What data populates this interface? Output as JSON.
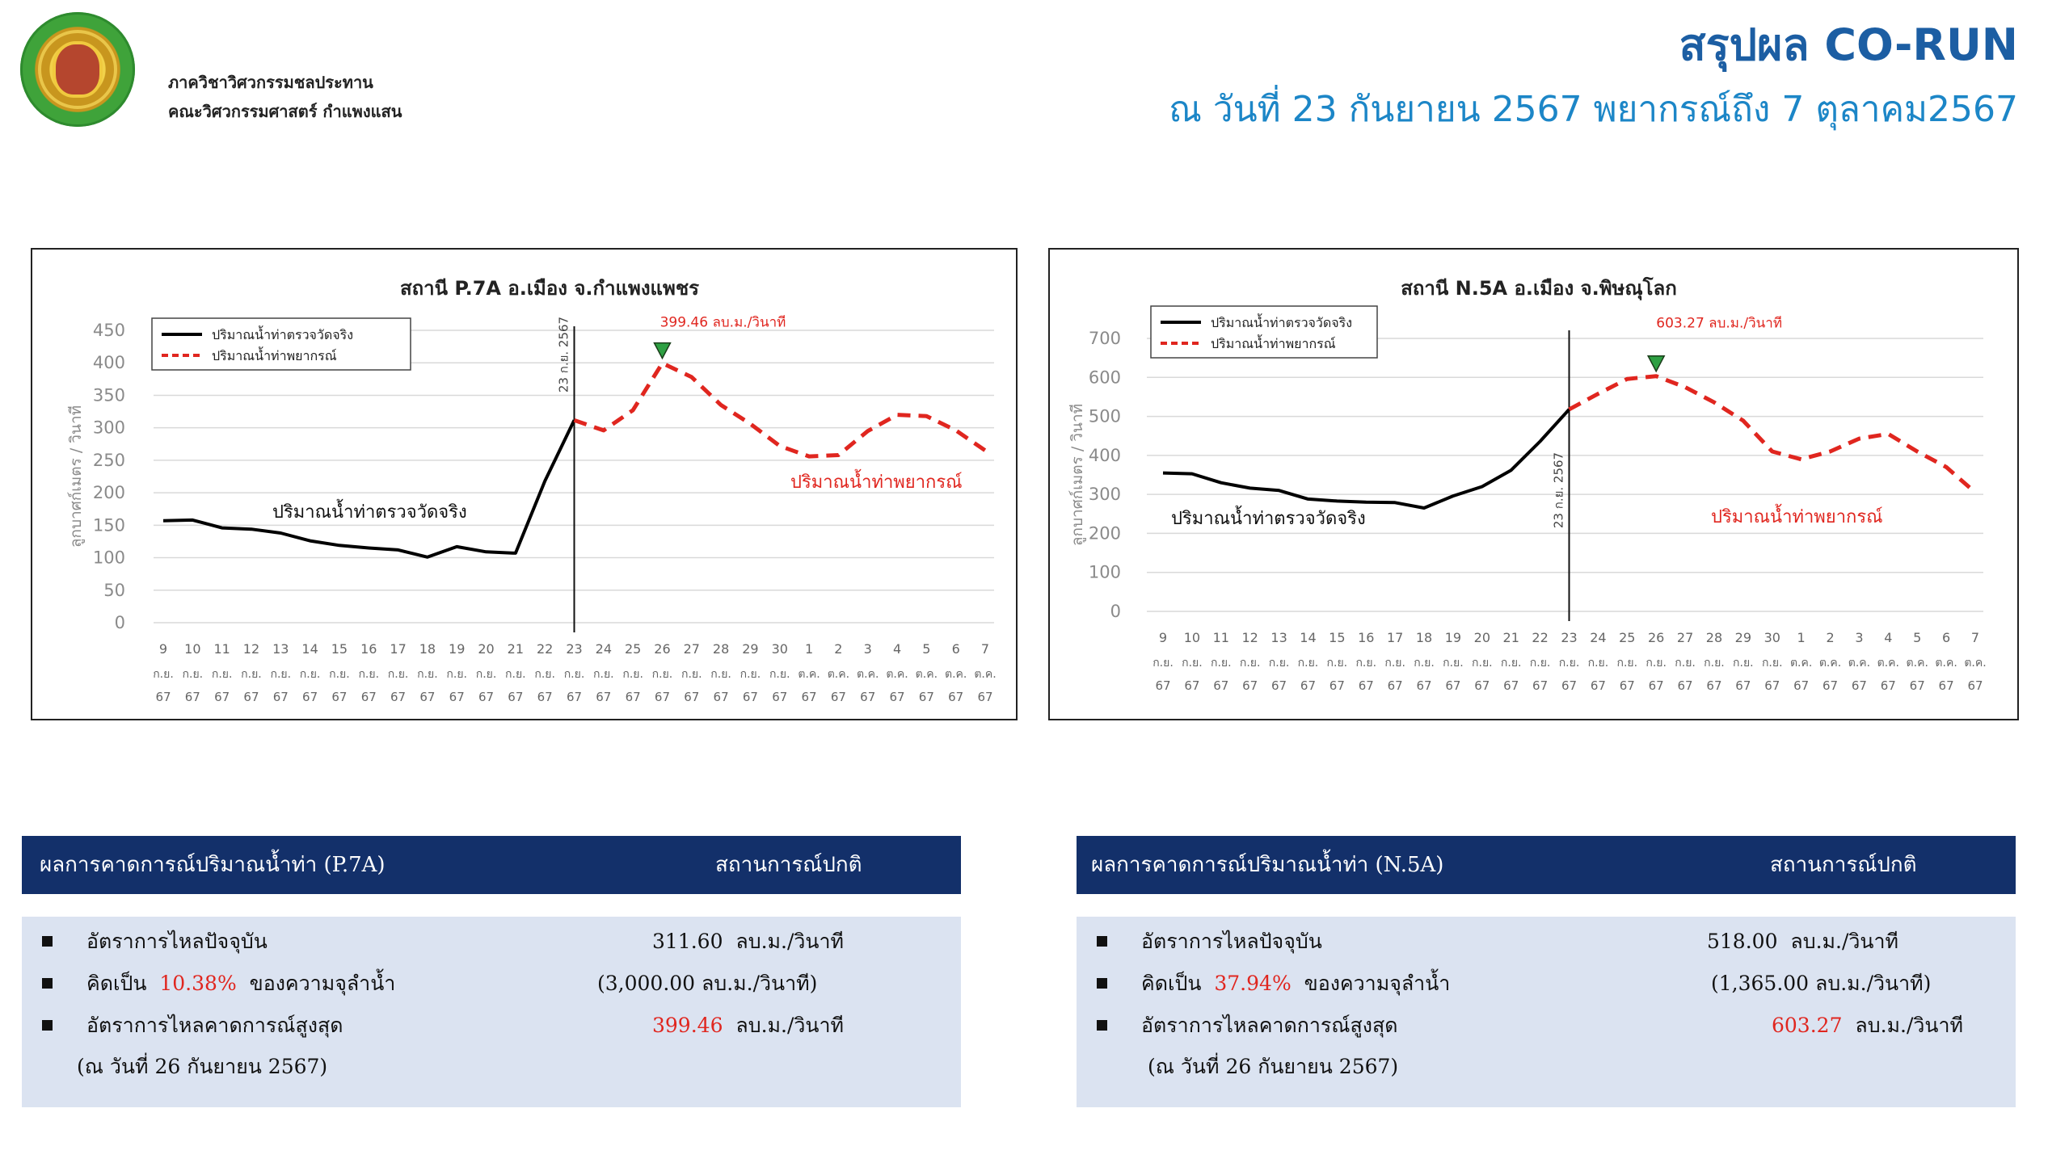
{
  "header": {
    "dept_line1": "ภาควิชาวิศวกรรมชลประทาน",
    "dept_line2": "คณะวิศวกรรมศาสตร์ กำแพงแสน",
    "title": "สรุปผล CO-RUN",
    "subtitle": "ณ วันที่ 23 กันยายน 2567 พยากรณ์ถึง 7 ตุลาคม2567"
  },
  "chart_data": [
    {
      "type": "line",
      "title": "สถานี P.7A อ.เมือง จ.กำแพงแพชร",
      "ylabel": "ลูกบาศก์เมตร / วินาที",
      "ylim": [
        0,
        450
      ],
      "yticks": [
        0,
        50,
        100,
        150,
        200,
        250,
        300,
        350,
        400,
        450
      ],
      "grid": true,
      "legend_position": "top-left",
      "categories": [
        "9",
        "10",
        "11",
        "12",
        "13",
        "14",
        "15",
        "16",
        "17",
        "18",
        "19",
        "20",
        "21",
        "22",
        "23",
        "24",
        "25",
        "26",
        "27",
        "28",
        "29",
        "30",
        "1",
        "2",
        "3",
        "4",
        "5",
        "6",
        "7"
      ],
      "category_month": [
        "ก.ย.",
        "ก.ย.",
        "ก.ย.",
        "ก.ย.",
        "ก.ย.",
        "ก.ย.",
        "ก.ย.",
        "ก.ย.",
        "ก.ย.",
        "ก.ย.",
        "ก.ย.",
        "ก.ย.",
        "ก.ย.",
        "ก.ย.",
        "ก.ย.",
        "ก.ย.",
        "ก.ย.",
        "ก.ย.",
        "ก.ย.",
        "ก.ย.",
        "ก.ย.",
        "ก.ย.",
        "ต.ค.",
        "ต.ค.",
        "ต.ค.",
        "ต.ค.",
        "ต.ค.",
        "ต.ค.",
        "ต.ค."
      ],
      "category_year": "67",
      "series": [
        {
          "name": "ปริมาณน้ำท่าตรวจวัดจริง",
          "style": "solid",
          "color": "#000000",
          "values": [
            157,
            158,
            146,
            144,
            138,
            126,
            119,
            115,
            112,
            101,
            117,
            109,
            107,
            218,
            311.6,
            null,
            null,
            null,
            null,
            null,
            null,
            null,
            null,
            null,
            null,
            null,
            null,
            null,
            null
          ]
        },
        {
          "name": "ปริมาณน้ำท่าพยากรณ์",
          "style": "dashed",
          "color": "#e0261f",
          "values": [
            null,
            null,
            null,
            null,
            null,
            null,
            null,
            null,
            null,
            null,
            null,
            null,
            null,
            null,
            311.6,
            296,
            327,
            399.46,
            378,
            335,
            306,
            272,
            256,
            258,
            295,
            320,
            318,
            296,
            265
          ]
        }
      ],
      "vline": {
        "x": "23",
        "label": "23 ก.ย. 2567"
      },
      "peak_label": "399.46 ลบ.ม./วินาที",
      "observed_annotation": "ปริมาณน้ำท่าตรวจวัดจริง",
      "forecast_annotation": "ปริมาณน้ำท่าพยากรณ์"
    },
    {
      "type": "line",
      "title": "สถานี N.5A อ.เมือง จ.พิษณุโลก",
      "ylabel": "ลูกบาศก์เมตร / วินาที",
      "ylim": [
        0,
        700
      ],
      "yticks": [
        0,
        100,
        200,
        300,
        400,
        500,
        600,
        700
      ],
      "grid": true,
      "legend_position": "top-left",
      "categories": [
        "9",
        "10",
        "11",
        "12",
        "13",
        "14",
        "15",
        "16",
        "17",
        "18",
        "19",
        "20",
        "21",
        "22",
        "23",
        "24",
        "25",
        "26",
        "27",
        "28",
        "29",
        "30",
        "1",
        "2",
        "3",
        "4",
        "5",
        "6",
        "7"
      ],
      "category_month": [
        "ก.ย.",
        "ก.ย.",
        "ก.ย.",
        "ก.ย.",
        "ก.ย.",
        "ก.ย.",
        "ก.ย.",
        "ก.ย.",
        "ก.ย.",
        "ก.ย.",
        "ก.ย.",
        "ก.ย.",
        "ก.ย.",
        "ก.ย.",
        "ก.ย.",
        "ก.ย.",
        "ก.ย.",
        "ก.ย.",
        "ก.ย.",
        "ก.ย.",
        "ก.ย.",
        "ก.ย.",
        "ต.ค.",
        "ต.ค.",
        "ต.ค.",
        "ต.ค.",
        "ต.ค.",
        "ต.ค.",
        "ต.ค."
      ],
      "category_year": "67",
      "series": [
        {
          "name": "ปริมาณน้ำท่าตรวจวัดจริง",
          "style": "solid",
          "color": "#000000",
          "values": [
            355,
            353,
            330,
            316,
            310,
            288,
            283,
            280,
            279,
            265,
            296,
            320,
            362,
            436,
            518,
            null,
            null,
            null,
            null,
            null,
            null,
            null,
            null,
            null,
            null,
            null,
            null,
            null,
            null
          ]
        },
        {
          "name": "ปริมาณน้ำท่าพยากรณ์",
          "style": "dashed",
          "color": "#e0261f",
          "values": [
            null,
            null,
            null,
            null,
            null,
            null,
            null,
            null,
            null,
            null,
            null,
            null,
            null,
            null,
            518,
            558,
            596,
            603.27,
            575,
            536,
            489,
            410,
            390,
            410,
            443,
            455,
            410,
            370,
            305
          ]
        }
      ],
      "vline": {
        "x": "23",
        "label": "23 ก.ย. 2567"
      },
      "peak_label": "603.27 ลบ.ม./วินาที",
      "observed_annotation": "ปริมาณน้ำท่าตรวจวัดจริง",
      "forecast_annotation": "ปริมาณน้ำท่าพยากรณ์"
    }
  ],
  "results": [
    {
      "header_label": "ผลการคาดการณ์ปริมาณน้ำท่า (P.7A)",
      "status": "สถานการณ์ปกติ",
      "current_label": "อัตราการไหลปัจจุบัน",
      "current_value": "311.60",
      "unit": "ลบ.ม./วินาที",
      "ratio_prefix": "คิดเป็น",
      "ratio_value": "10.38%",
      "ratio_suffix": "ของความจุลำน้ำ",
      "capacity": "(3,000.00  ลบ.ม./วินาที)",
      "peak_label": "อัตราการไหลคาดการณ์สูงสุด",
      "peak_value": "399.46",
      "peak_date": "(ณ วันที่ 26 กันยายน 2567)"
    },
    {
      "header_label": "ผลการคาดการณ์ปริมาณน้ำท่า (N.5A)",
      "status": "สถานการณ์ปกติ",
      "current_label": "อัตราการไหลปัจจุบัน",
      "current_value": "518.00",
      "unit": "ลบ.ม./วินาที",
      "ratio_prefix": "คิดเป็น",
      "ratio_value": "37.94%",
      "ratio_suffix": "ของความจุลำน้ำ",
      "capacity": "(1,365.00  ลบ.ม./วินาที)",
      "peak_label": "อัตราการไหลคาดการณ์สูงสุด",
      "peak_value": "603.27",
      "peak_date": "(ณ วันที่ 26 กันยายน 2567)"
    }
  ]
}
